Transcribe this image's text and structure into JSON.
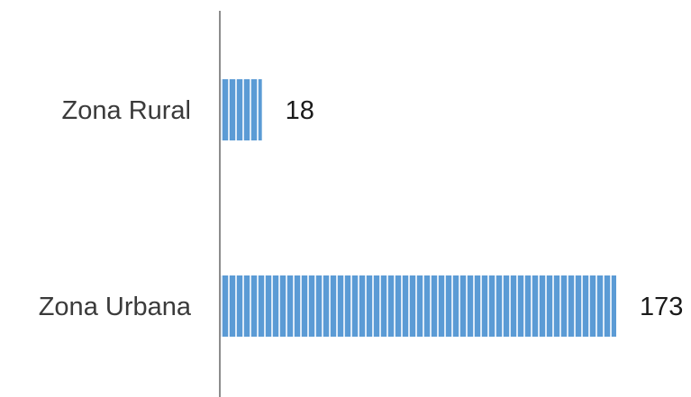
{
  "chart_data": {
    "type": "bar",
    "orientation": "horizontal",
    "categories": [
      "Zona Rural",
      "Zona Urbana"
    ],
    "values": [
      18,
      173
    ],
    "data_labels": [
      "18",
      "173"
    ],
    "xlim": [
      0,
      173
    ],
    "grid": false,
    "legend": "none",
    "bar_color": "#5b9bd5",
    "bar_stripe_color": "#dbe9f7",
    "axis_color": "#8c8c8c"
  }
}
